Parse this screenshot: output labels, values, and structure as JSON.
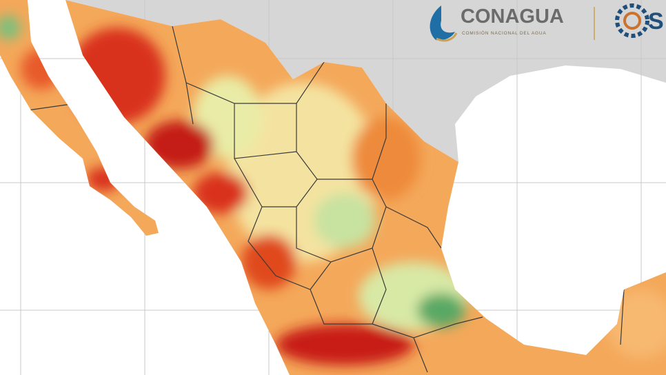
{
  "logo": {
    "name": "CONAGUA",
    "subtitle": "COMISIÓN NACIONAL DEL AGUA"
  },
  "partner_logo": {
    "text": "S"
  }
}
